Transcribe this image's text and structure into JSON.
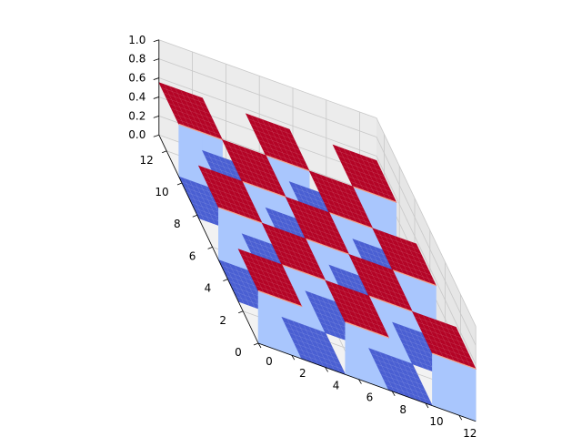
{
  "chart_data": {
    "type": "surface3d",
    "title": "",
    "xlabel": "",
    "ylabel": "",
    "zlabel": "",
    "colormap": "coolwarm",
    "grid": true,
    "x_ticks": [
      "0",
      "2",
      "4",
      "6",
      "8",
      "10",
      "12"
    ],
    "y_ticks": [
      "0",
      "2",
      "4",
      "6",
      "8",
      "10",
      "12"
    ],
    "z_ticks": [
      "0.0",
      "0.2",
      "0.4",
      "0.6",
      "0.8",
      "1.0"
    ],
    "xlim": [
      0,
      13
    ],
    "ylim": [
      0,
      13
    ],
    "zlim": [
      0,
      1
    ],
    "grid_size": 5,
    "cell_span": 2.6,
    "z_values": [
      [
        1,
        0,
        1,
        0,
        1
      ],
      [
        0,
        1,
        0,
        1,
        0
      ],
      [
        1,
        0,
        1,
        0,
        1
      ],
      [
        0,
        1,
        0,
        1,
        0
      ],
      [
        1,
        0,
        1,
        0,
        1
      ]
    ],
    "colors": {
      "high": "#b40426",
      "low": "#4a5fd2",
      "wall": "#a9c6fd",
      "edge": "#f4a58c",
      "pane": "#f2f2f2",
      "gridline": "#c8c8c8"
    }
  }
}
